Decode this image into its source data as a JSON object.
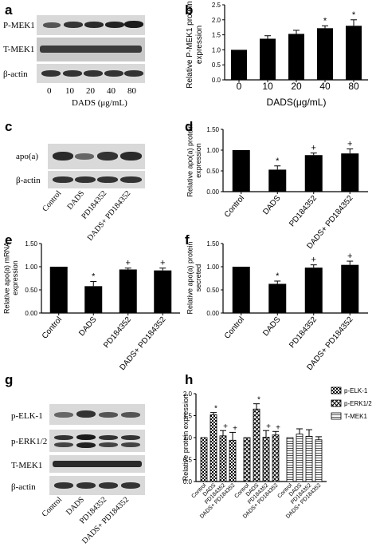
{
  "panels": {
    "a": {
      "letter": "a",
      "rows": [
        "P-MEK1",
        "T-MEK1",
        "β-actin"
      ],
      "lanes": [
        "0",
        "10",
        "20",
        "40",
        "80"
      ],
      "xlabel": "DADS (μg/mL)"
    },
    "c": {
      "letter": "c",
      "rows": [
        "apo(a)",
        "β-actin"
      ],
      "lanes": [
        "Control",
        "DADS",
        "PD184352",
        "DADS+ PD184352"
      ]
    },
    "g": {
      "letter": "g",
      "rows": [
        "p-ELK-1",
        "p-ERK1/2",
        "T-MEK1",
        "β-actin"
      ],
      "lanes": [
        "Control",
        "DADS",
        "PD184352",
        "DADS+ PD184352"
      ]
    }
  },
  "colors": {
    "bar": "#000000",
    "blot_bg": "#d9d9d9",
    "band": "#1a1a1a"
  },
  "chart_data": [
    {
      "id": "b",
      "letter": "b",
      "type": "bar",
      "categories": [
        "0",
        "10",
        "20",
        "40",
        "80"
      ],
      "values": [
        1.0,
        1.37,
        1.53,
        1.72,
        1.8
      ],
      "errors": [
        0,
        0.1,
        0.12,
        0.08,
        0.2
      ],
      "significance": [
        "",
        "",
        "",
        "*",
        "*"
      ],
      "ylabel": "Relative P-MEK1 protein expression",
      "xlabel": "DADS(μg/mL)",
      "ylim": [
        0,
        2.5
      ],
      "yticks": [
        0,
        0.5,
        1.0,
        1.5,
        2.0,
        2.5
      ],
      "ytick_labels": [
        "0.0",
        "0.5",
        "1.0",
        "1.5",
        "2.0",
        "2.5"
      ]
    },
    {
      "id": "d",
      "letter": "d",
      "type": "bar",
      "categories": [
        "Control",
        "DADS",
        "PD184352",
        "DADS+ PD184352"
      ],
      "values": [
        1.0,
        0.53,
        0.88,
        0.92
      ],
      "errors": [
        0,
        0.09,
        0.05,
        0.11
      ],
      "significance": [
        "",
        "*",
        "+",
        "+"
      ],
      "ylabel": "Relative apo(a) protein expression",
      "xlabel": "",
      "ylim": [
        0,
        1.5
      ],
      "yticks": [
        0,
        0.5,
        1.0,
        1.5
      ],
      "ytick_labels": [
        "0.00",
        "0.50",
        "1.00",
        "1.50"
      ]
    },
    {
      "id": "e",
      "letter": "e",
      "type": "bar",
      "categories": [
        "Control",
        "DADS",
        "PD184352",
        "DADS+ PD184352"
      ],
      "values": [
        1.0,
        0.58,
        0.94,
        0.92
      ],
      "errors": [
        0,
        0.1,
        0.03,
        0.05
      ],
      "significance": [
        "",
        "*",
        "+",
        "+"
      ],
      "ylabel": "Relative apo(a) mRNA expression",
      "xlabel": "",
      "ylim": [
        0,
        1.5
      ],
      "yticks": [
        0,
        0.5,
        1.0,
        1.5
      ],
      "ytick_labels": [
        "0.00",
        "0.50",
        "1.00",
        "1.50"
      ]
    },
    {
      "id": "f",
      "letter": "f",
      "type": "bar",
      "categories": [
        "Control",
        "DADS",
        "PD184352",
        "DADS+ PD184352"
      ],
      "values": [
        1.0,
        0.63,
        0.98,
        1.04
      ],
      "errors": [
        0,
        0.06,
        0.06,
        0.08
      ],
      "significance": [
        "",
        "*",
        "+",
        "+"
      ],
      "ylabel": "Relative apo(a) protein secreted",
      "xlabel": "",
      "ylim": [
        0,
        1.5
      ],
      "yticks": [
        0,
        0.5,
        1.0,
        1.5
      ],
      "ytick_labels": [
        "0.00",
        "0.50",
        "1.00",
        "1.50"
      ]
    },
    {
      "id": "h",
      "letter": "h",
      "type": "bar",
      "groups": [
        "p-ELK-1",
        "p-ERK1/2",
        "T-MEK1"
      ],
      "categories": [
        "Control",
        "DADS",
        "PD184352",
        "DADS+ PD184352"
      ],
      "series": [
        {
          "name": "p-ELK-1",
          "values": [
            1.0,
            1.52,
            1.04,
            0.94
          ],
          "errors": [
            0,
            0.05,
            0.12,
            0.18
          ],
          "significance": [
            "",
            "*",
            "+",
            "+"
          ]
        },
        {
          "name": "p-ERK1/2",
          "values": [
            1.0,
            1.65,
            1.01,
            1.06
          ],
          "errors": [
            0,
            0.12,
            0.15,
            0.08
          ],
          "significance": [
            "",
            "*",
            "+",
            "+"
          ]
        },
        {
          "name": "T-MEK1",
          "values": [
            1.0,
            1.08,
            1.03,
            0.95
          ],
          "errors": [
            0,
            0.12,
            0.15,
            0.07
          ],
          "significance": [
            "",
            "",
            "",
            ""
          ]
        }
      ],
      "ylabel": "Relative protein expression",
      "xlabel": "",
      "ylim": [
        0,
        2.0
      ],
      "yticks": [
        0,
        0.5,
        1.0,
        1.5,
        2.0
      ],
      "ytick_labels": [
        "0.0",
        "0.5",
        "1.0",
        "1.5",
        "2.0"
      ]
    }
  ]
}
